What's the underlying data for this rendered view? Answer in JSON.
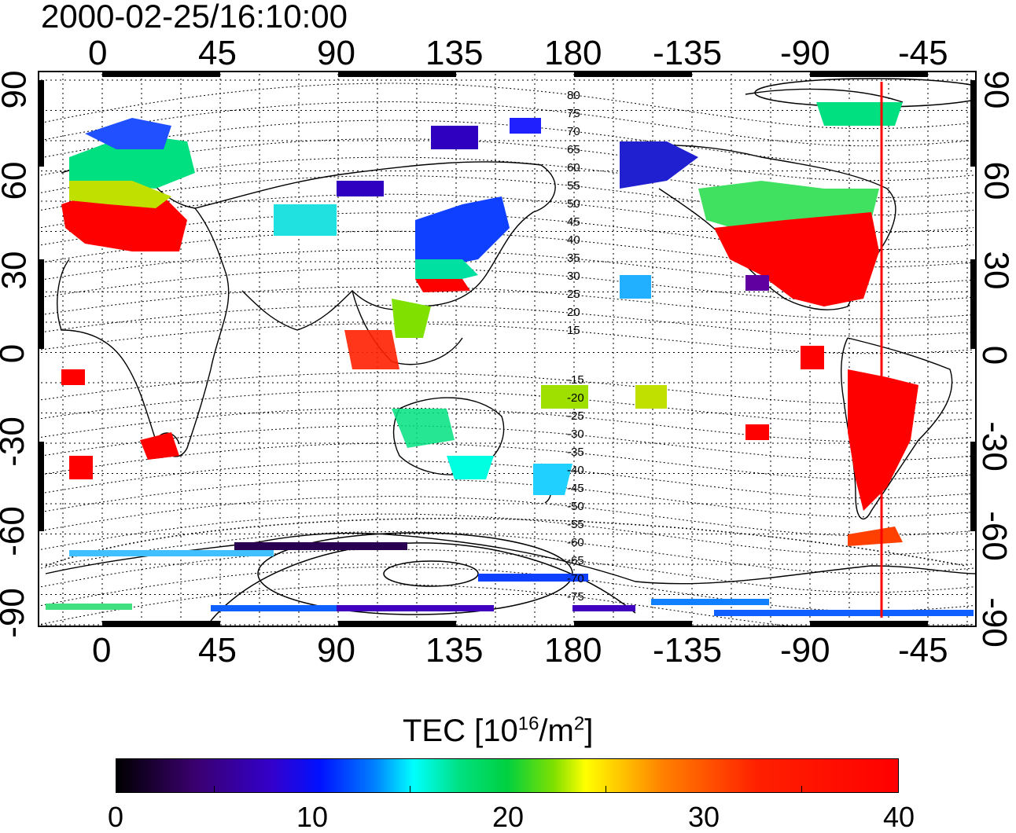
{
  "title": "2000-02-25/16:10:00",
  "axes": {
    "top_ticks": [
      "0",
      "45",
      "90",
      "135",
      "180",
      "-135",
      "-90",
      "-45"
    ],
    "bottom_ticks": [
      "0",
      "45",
      "90",
      "135",
      "180",
      "-135",
      "-90",
      "-45"
    ],
    "left_ticks": [
      "90",
      "60",
      "30",
      "0",
      "-30",
      "-60",
      "-90"
    ],
    "right_ticks": [
      "90",
      "60",
      "30",
      "0",
      "-30",
      "-60",
      "-90"
    ]
  },
  "contour_labels": [
    "80",
    "75",
    "70",
    "65",
    "60",
    "55",
    "50",
    "45",
    "40",
    "35",
    "30",
    "25",
    "20",
    "15",
    "-15",
    "-20",
    "-25",
    "-30",
    "-35",
    "-40",
    "-45",
    "-50",
    "-55",
    "-60",
    "-65",
    "-70",
    "-75"
  ],
  "marker": {
    "longitude": -62,
    "color": "#ff0000"
  },
  "colorbar": {
    "title_text": "TEC  [10",
    "title_exp1": "16",
    "title_mid": "/m",
    "title_exp2": "2",
    "title_end": "]",
    "ticks": [
      "0",
      "10",
      "20",
      "30",
      "40"
    ]
  },
  "colors": {
    "high": "#ff0000",
    "mid": "#00e080",
    "low": "#3a006e"
  }
}
